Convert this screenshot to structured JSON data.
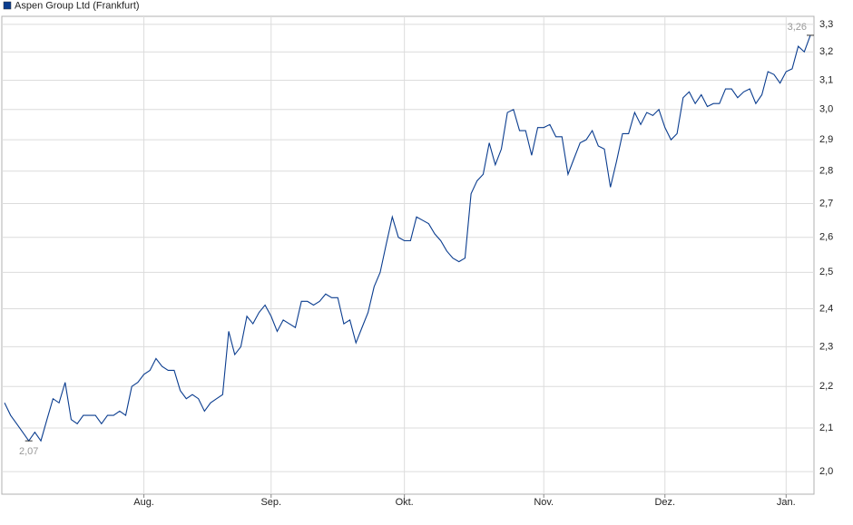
{
  "chart_data": {
    "type": "line",
    "log_scale": true,
    "grid": true,
    "legend": "top-left",
    "categories": [
      null,
      null,
      null,
      null,
      null,
      null,
      null,
      null,
      null,
      null,
      null,
      null,
      null,
      null,
      null,
      null,
      null,
      null,
      null,
      null,
      null,
      null,
      null,
      "Aug.",
      null,
      null,
      null,
      null,
      null,
      null,
      null,
      null,
      null,
      null,
      null,
      null,
      null,
      null,
      null,
      null,
      null,
      null,
      null,
      null,
      "Sep.",
      null,
      null,
      null,
      null,
      null,
      null,
      null,
      null,
      null,
      null,
      null,
      null,
      null,
      null,
      null,
      null,
      null,
      null,
      null,
      null,
      null,
      "Okt.",
      null,
      null,
      null,
      null,
      null,
      null,
      null,
      null,
      null,
      null,
      null,
      null,
      null,
      null,
      null,
      null,
      null,
      null,
      null,
      null,
      null,
      null,
      "Nov.",
      null,
      null,
      null,
      null,
      null,
      null,
      null,
      null,
      null,
      null,
      null,
      null,
      null,
      null,
      null,
      null,
      null,
      null,
      null,
      "Dez.",
      null,
      null,
      null,
      null,
      null,
      null,
      null,
      null,
      null,
      null,
      null,
      null,
      null,
      null,
      null,
      null,
      null,
      null,
      null,
      "Jan.",
      null,
      null,
      null,
      null
    ],
    "series": [
      {
        "name": "Aspen Group Ltd (Frankfurt)",
        "color": "#0b3d8f",
        "values": [
          2.16,
          2.13,
          2.11,
          2.09,
          2.07,
          2.09,
          2.07,
          2.12,
          2.17,
          2.16,
          2.21,
          2.12,
          2.11,
          2.13,
          2.13,
          2.13,
          2.11,
          2.13,
          2.13,
          2.14,
          2.13,
          2.2,
          2.21,
          2.23,
          2.24,
          2.27,
          2.25,
          2.24,
          2.24,
          2.19,
          2.17,
          2.18,
          2.17,
          2.14,
          2.16,
          2.17,
          2.18,
          2.34,
          2.28,
          2.3,
          2.38,
          2.36,
          2.39,
          2.41,
          2.38,
          2.34,
          2.37,
          2.36,
          2.35,
          2.42,
          2.42,
          2.41,
          2.42,
          2.44,
          2.43,
          2.43,
          2.36,
          2.37,
          2.31,
          2.35,
          2.39,
          2.46,
          2.5,
          2.58,
          2.66,
          2.6,
          2.59,
          2.59,
          2.66,
          2.65,
          2.64,
          2.61,
          2.59,
          2.56,
          2.54,
          2.53,
          2.54,
          2.73,
          2.77,
          2.79,
          2.89,
          2.82,
          2.87,
          2.99,
          3.0,
          2.93,
          2.93,
          2.85,
          2.94,
          2.94,
          2.95,
          2.91,
          2.91,
          2.79,
          2.84,
          2.89,
          2.9,
          2.93,
          2.88,
          2.87,
          2.75,
          2.83,
          2.92,
          2.92,
          2.99,
          2.95,
          2.99,
          2.98,
          3.0,
          2.94,
          2.9,
          2.92,
          3.04,
          3.06,
          3.02,
          3.05,
          3.01,
          3.02,
          3.02,
          3.07,
          3.07,
          3.04,
          3.06,
          3.07,
          3.02,
          3.05,
          3.13,
          3.12,
          3.09,
          3.13,
          3.14,
          3.22,
          3.2,
          3.26
        ],
        "value_labels": [
          null,
          null,
          null,
          null,
          "2,07",
          null,
          null,
          null,
          null,
          null,
          null,
          null,
          null,
          null,
          null,
          null,
          null,
          null,
          null,
          null,
          null,
          null,
          null,
          null,
          null,
          null,
          null,
          null,
          null,
          null,
          null,
          null,
          null,
          null,
          null,
          null,
          null,
          null,
          null,
          null,
          null,
          null,
          null,
          null,
          null,
          null,
          null,
          null,
          null,
          null,
          null,
          null,
          null,
          null,
          null,
          null,
          null,
          null,
          null,
          null,
          null,
          null,
          null,
          null,
          null,
          null,
          null,
          null,
          null,
          null,
          null,
          null,
          null,
          null,
          null,
          null,
          null,
          null,
          null,
          null,
          null,
          null,
          null,
          null,
          null,
          null,
          null,
          null,
          null,
          null,
          null,
          null,
          null,
          null,
          null,
          null,
          null,
          null,
          null,
          null,
          null,
          null,
          null,
          null,
          null,
          null,
          null,
          null,
          null,
          null,
          null,
          null,
          null,
          null,
          null,
          null,
          null,
          null,
          null,
          null,
          null,
          null,
          null,
          null,
          null,
          null,
          null,
          null,
          null,
          null,
          null,
          null,
          null,
          "3,26"
        ]
      }
    ],
    "ylim": [
      1.95,
      3.33
    ],
    "yticks": [
      {
        "value": 2.0,
        "label": "2,0"
      },
      {
        "value": 2.1,
        "label": "2,1"
      },
      {
        "value": 2.2,
        "label": "2,2"
      },
      {
        "value": 2.3,
        "label": "2,3"
      },
      {
        "value": 2.4,
        "label": "2,4"
      },
      {
        "value": 2.5,
        "label": "2,5"
      },
      {
        "value": 2.6,
        "label": "2,6"
      },
      {
        "value": 2.7,
        "label": "2,7"
      },
      {
        "value": 2.8,
        "label": "2,8"
      },
      {
        "value": 2.9,
        "label": "2,9"
      },
      {
        "value": 3.0,
        "label": "3,0"
      },
      {
        "value": 3.1,
        "label": "3,1"
      },
      {
        "value": 3.2,
        "label": "3,2"
      },
      {
        "value": 3.3,
        "label": "3,3"
      }
    ]
  }
}
